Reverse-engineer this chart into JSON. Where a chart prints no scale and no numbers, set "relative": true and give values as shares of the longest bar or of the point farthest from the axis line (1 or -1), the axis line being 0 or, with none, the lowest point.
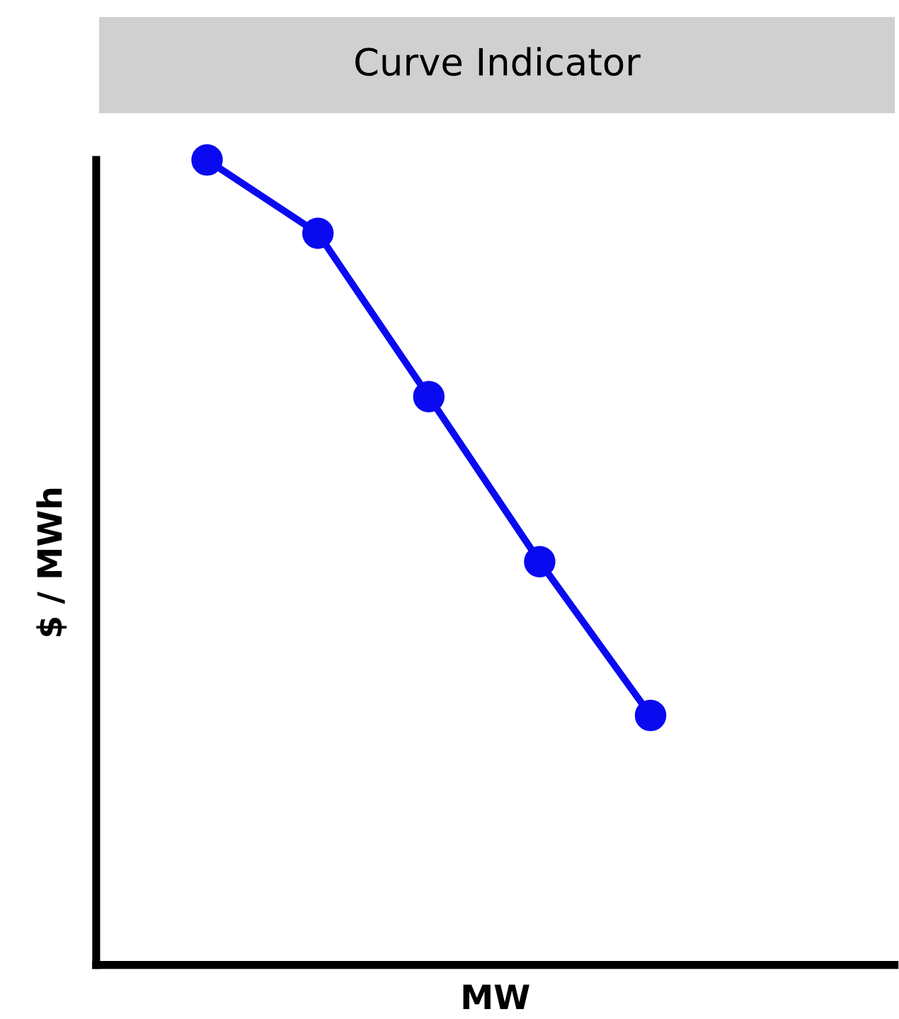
{
  "chart_data": {
    "type": "line",
    "title": "Curve Indicator",
    "xlabel": "MW",
    "ylabel": "$ / MWh",
    "relative": true,
    "categories": [
      null,
      null,
      null,
      null,
      null
    ],
    "series": [
      {
        "color": "#0a0af0",
        "values": [
          1,
          0.909,
          0.706,
          0.501,
          0.31
        ]
      }
    ],
    "marker": "circle",
    "line_style": "solid",
    "grid": false,
    "legend": false
  }
}
